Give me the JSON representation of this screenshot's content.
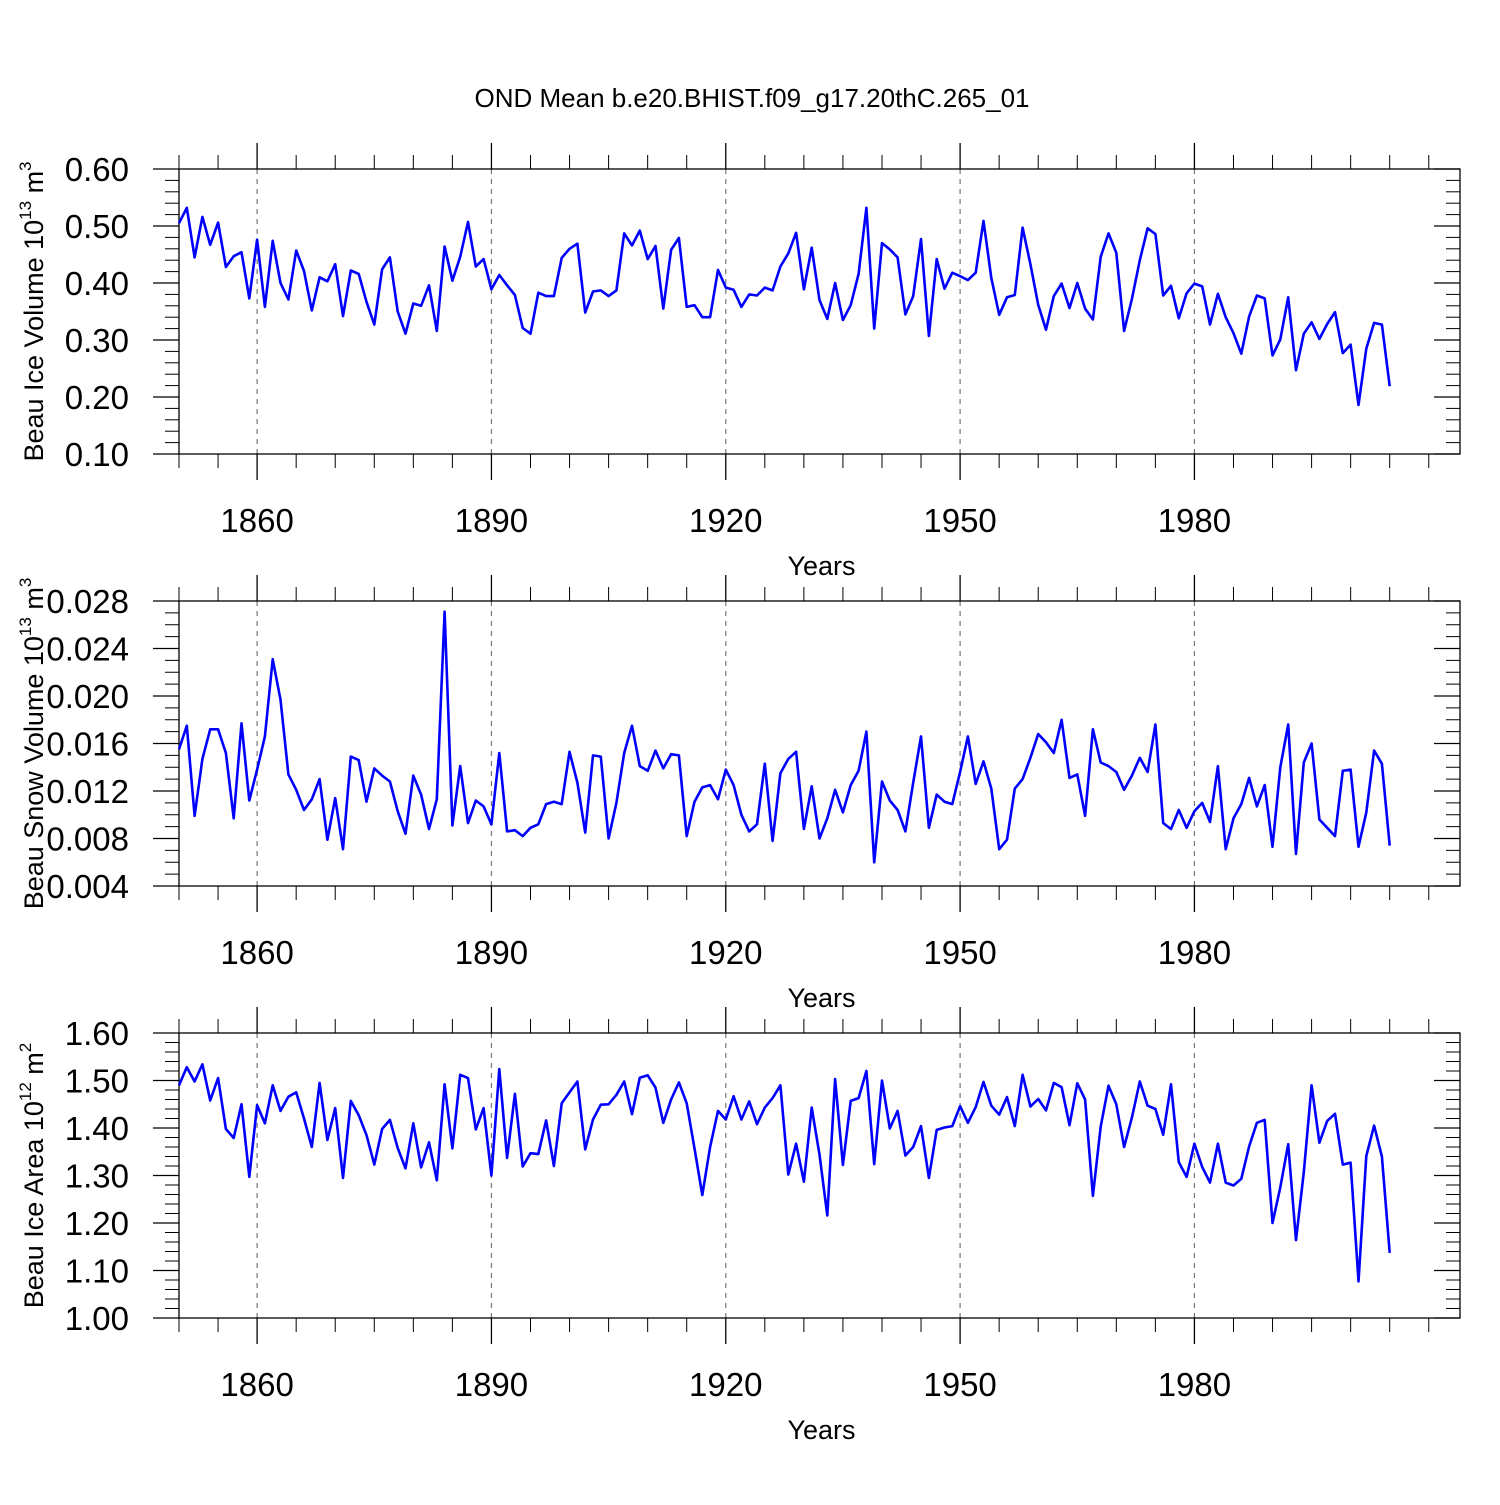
{
  "title": "OND Mean b.e20.BHIST.f09_g17.20thC.265_01",
  "chart_data": [
    {
      "type": "line",
      "ylabel": {
        "main": "Beau Ice Volume 10",
        "sup": "13",
        "unit": " m",
        "unit_sup": "3"
      },
      "xlabel": "Years",
      "xlim": [
        1850,
        2014
      ],
      "ylim": [
        0.1,
        0.6
      ],
      "yticks": [
        0.1,
        0.2,
        0.3,
        0.4,
        0.5,
        0.6
      ],
      "ytick_labels": [
        "0.10",
        "0.20",
        "0.30",
        "0.40",
        "0.50",
        "0.60"
      ],
      "ymin_step": 0.02,
      "xticks": [
        1860,
        1890,
        1920,
        1950,
        1980
      ],
      "xtick_labels": [
        "1860",
        "1890",
        "1920",
        "1950",
        "1980"
      ],
      "color": "#0000ff",
      "series": [
        {
          "name": "Beau Ice Volume",
          "x_start": 1850,
          "values": [
            0.505,
            0.532,
            0.445,
            0.516,
            0.467,
            0.506,
            0.428,
            0.447,
            0.454,
            0.373,
            0.476,
            0.358,
            0.474,
            0.4,
            0.371,
            0.457,
            0.421,
            0.352,
            0.41,
            0.403,
            0.433,
            0.342,
            0.422,
            0.416,
            0.367,
            0.327,
            0.424,
            0.445,
            0.35,
            0.311,
            0.364,
            0.36,
            0.396,
            0.316,
            0.464,
            0.404,
            0.446,
            0.507,
            0.429,
            0.442,
            0.389,
            0.414,
            0.396,
            0.379,
            0.321,
            0.311,
            0.383,
            0.377,
            0.377,
            0.444,
            0.46,
            0.469,
            0.348,
            0.385,
            0.387,
            0.377,
            0.387,
            0.487,
            0.466,
            0.492,
            0.442,
            0.465,
            0.355,
            0.458,
            0.479,
            0.358,
            0.361,
            0.34,
            0.34,
            0.423,
            0.392,
            0.388,
            0.358,
            0.38,
            0.378,
            0.392,
            0.387,
            0.429,
            0.452,
            0.488,
            0.389,
            0.462,
            0.37,
            0.337,
            0.4,
            0.335,
            0.361,
            0.416,
            0.532,
            0.32,
            0.47,
            0.459,
            0.445,
            0.345,
            0.377,
            0.477,
            0.307,
            0.442,
            0.39,
            0.418,
            0.412,
            0.405,
            0.418,
            0.509,
            0.409,
            0.344,
            0.375,
            0.379,
            0.497,
            0.433,
            0.362,
            0.318,
            0.377,
            0.399,
            0.356,
            0.4,
            0.355,
            0.336,
            0.446,
            0.487,
            0.453,
            0.316,
            0.372,
            0.44,
            0.496,
            0.486,
            0.378,
            0.395,
            0.338,
            0.382,
            0.399,
            0.394,
            0.327,
            0.381,
            0.34,
            0.312,
            0.276,
            0.341,
            0.378,
            0.373,
            0.273,
            0.301,
            0.375,
            0.247,
            0.311,
            0.331,
            0.302,
            0.328,
            0.349,
            0.277,
            0.292,
            0.186,
            0.285,
            0.33,
            0.327,
            0.219
          ]
        }
      ]
    },
    {
      "type": "line",
      "ylabel": {
        "main": "Beau Snow Volume 10",
        "sup": "13",
        "unit": " m",
        "unit_sup": "3"
      },
      "xlabel": "Years",
      "xlim": [
        1850,
        2014
      ],
      "ylim": [
        0.004,
        0.028
      ],
      "yticks": [
        0.004,
        0.008,
        0.012,
        0.016,
        0.02,
        0.024,
        0.028
      ],
      "ytick_labels": [
        "0.004",
        "0.008",
        "0.012",
        "0.016",
        "0.020",
        "0.024",
        "0.028"
      ],
      "ymin_step": 0.001,
      "xticks": [
        1860,
        1890,
        1920,
        1950,
        1980
      ],
      "xtick_labels": [
        "1860",
        "1890",
        "1920",
        "1950",
        "1980"
      ],
      "color": "#0000ff",
      "series": [
        {
          "name": "Beau Snow Volume",
          "x_start": 1850,
          "values": [
            0.0155,
            0.0175,
            0.0099,
            0.0147,
            0.0172,
            0.0172,
            0.0152,
            0.0097,
            0.0177,
            0.0112,
            0.0138,
            0.0166,
            0.0231,
            0.0197,
            0.0134,
            0.0121,
            0.0104,
            0.0113,
            0.013,
            0.0079,
            0.0114,
            0.0071,
            0.0149,
            0.0146,
            0.0111,
            0.0139,
            0.0133,
            0.0128,
            0.0103,
            0.0084,
            0.0133,
            0.0117,
            0.0088,
            0.0113,
            0.0271,
            0.0091,
            0.0141,
            0.0093,
            0.0112,
            0.0107,
            0.0092,
            0.0152,
            0.0086,
            0.0087,
            0.0082,
            0.0089,
            0.0092,
            0.0109,
            0.0111,
            0.0109,
            0.0153,
            0.0127,
            0.0085,
            0.015,
            0.0149,
            0.008,
            0.011,
            0.0152,
            0.0175,
            0.0141,
            0.0137,
            0.0154,
            0.0139,
            0.0151,
            0.015,
            0.0082,
            0.0111,
            0.0123,
            0.0125,
            0.0113,
            0.0138,
            0.0125,
            0.01,
            0.0086,
            0.0092,
            0.0143,
            0.0078,
            0.0135,
            0.0147,
            0.0153,
            0.0088,
            0.0124,
            0.008,
            0.0097,
            0.0121,
            0.0102,
            0.0125,
            0.0137,
            0.017,
            0.006,
            0.0128,
            0.0112,
            0.0104,
            0.0086,
            0.0127,
            0.0166,
            0.0089,
            0.0117,
            0.0111,
            0.0109,
            0.0136,
            0.0166,
            0.0126,
            0.0145,
            0.0122,
            0.0071,
            0.0079,
            0.0122,
            0.013,
            0.0148,
            0.0168,
            0.0161,
            0.0152,
            0.018,
            0.0131,
            0.0134,
            0.0099,
            0.0172,
            0.0144,
            0.0141,
            0.0136,
            0.0121,
            0.0133,
            0.0148,
            0.0136,
            0.0176,
            0.0093,
            0.0088,
            0.0104,
            0.0089,
            0.0103,
            0.011,
            0.0094,
            0.0141,
            0.0071,
            0.0097,
            0.0109,
            0.0131,
            0.0107,
            0.0125,
            0.0073,
            0.014,
            0.0176,
            0.0067,
            0.0144,
            0.016,
            0.0096,
            0.0089,
            0.0082,
            0.0137,
            0.0138,
            0.0073,
            0.0102,
            0.0154,
            0.0143,
            0.0074
          ]
        }
      ]
    },
    {
      "type": "line",
      "ylabel": {
        "main": "Beau Ice Area 10",
        "sup": "12",
        "unit": " m",
        "unit_sup": "2"
      },
      "xlabel": "Years",
      "xlim": [
        1850,
        2014
      ],
      "ylim": [
        1.0,
        1.6
      ],
      "yticks": [
        1.0,
        1.1,
        1.2,
        1.3,
        1.4,
        1.5,
        1.6
      ],
      "ytick_labels": [
        "1.00",
        "1.10",
        "1.20",
        "1.30",
        "1.40",
        "1.50",
        "1.60"
      ],
      "ymin_step": 0.02,
      "xticks": [
        1860,
        1890,
        1920,
        1950,
        1980
      ],
      "xtick_labels": [
        "1860",
        "1890",
        "1920",
        "1950",
        "1980"
      ],
      "color": "#0000ff",
      "series": [
        {
          "name": "Beau Ice Area",
          "x_start": 1850,
          "values": [
            1.49,
            1.528,
            1.498,
            1.534,
            1.458,
            1.505,
            1.398,
            1.379,
            1.45,
            1.297,
            1.448,
            1.41,
            1.49,
            1.436,
            1.466,
            1.475,
            1.42,
            1.36,
            1.495,
            1.375,
            1.442,
            1.295,
            1.457,
            1.427,
            1.385,
            1.323,
            1.398,
            1.417,
            1.358,
            1.315,
            1.41,
            1.317,
            1.37,
            1.29,
            1.492,
            1.357,
            1.512,
            1.505,
            1.397,
            1.442,
            1.3,
            1.524,
            1.337,
            1.472,
            1.319,
            1.347,
            1.345,
            1.416,
            1.32,
            1.452,
            1.475,
            1.498,
            1.355,
            1.418,
            1.449,
            1.45,
            1.47,
            1.498,
            1.429,
            1.506,
            1.511,
            1.485,
            1.411,
            1.46,
            1.496,
            1.452,
            1.357,
            1.259,
            1.36,
            1.436,
            1.418,
            1.467,
            1.418,
            1.456,
            1.408,
            1.443,
            1.463,
            1.49,
            1.302,
            1.367,
            1.287,
            1.443,
            1.344,
            1.216,
            1.503,
            1.322,
            1.457,
            1.463,
            1.52,
            1.324,
            1.5,
            1.399,
            1.436,
            1.342,
            1.36,
            1.404,
            1.295,
            1.396,
            1.401,
            1.404,
            1.446,
            1.411,
            1.444,
            1.497,
            1.447,
            1.428,
            1.465,
            1.404,
            1.512,
            1.445,
            1.461,
            1.437,
            1.495,
            1.486,
            1.406,
            1.494,
            1.46,
            1.257,
            1.403,
            1.489,
            1.45,
            1.36,
            1.422,
            1.498,
            1.447,
            1.44,
            1.386,
            1.492,
            1.328,
            1.297,
            1.367,
            1.318,
            1.285,
            1.367,
            1.285,
            1.279,
            1.293,
            1.361,
            1.411,
            1.417,
            1.2,
            1.275,
            1.366,
            1.164,
            1.307,
            1.49,
            1.369,
            1.415,
            1.43,
            1.323,
            1.327,
            1.077,
            1.341,
            1.405,
            1.34,
            1.137
          ]
        }
      ]
    }
  ]
}
